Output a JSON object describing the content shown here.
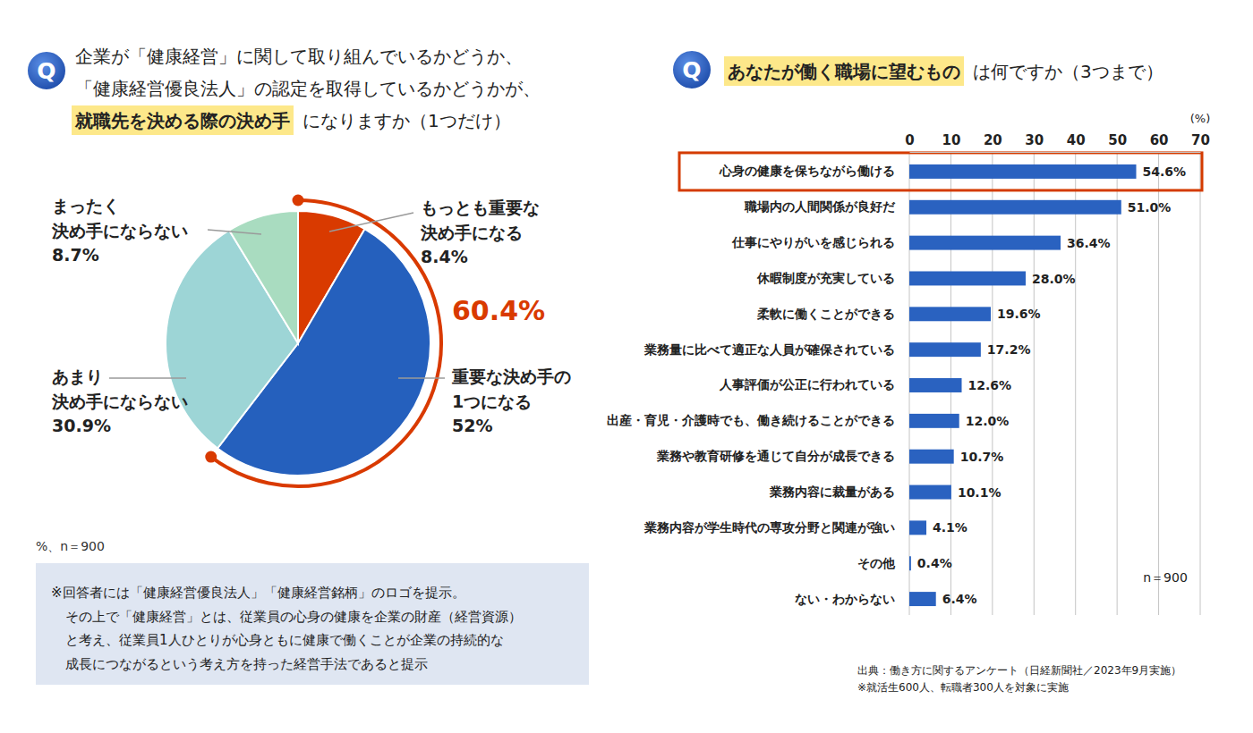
{
  "chart_data": [
    {
      "type": "pie",
      "title_icon": "Q",
      "title": [
        "企業が「健康経営」に関して取り組んでいるかどうか、",
        "「健康経営優良法人」の認定を取得しているかどうかが、",
        "就職先を決める際の決め手",
        "になりますか（1つだけ）"
      ],
      "categories": [
        "もっとも重要な\n決め手になる",
        "重要な決め手の\n1つになる",
        "あまり\n決め手にならない",
        "まったく\n決め手にならない"
      ],
      "values": [
        8.4,
        52,
        30.9,
        8.7
      ],
      "value_labels": [
        "8.4%",
        "52%",
        "30.9%",
        "8.7%"
      ],
      "colors": [
        "#d93a00",
        "#2560bd",
        "#9dd5d6",
        "#a9dcc0"
      ],
      "data_labels": true,
      "annotations": [
        {
          "text": "60.4%",
          "value": 60.4
        }
      ],
      "note": "%、n＝900",
      "footnote": [
        "※回答者には「健康経営優良法人」「健康経営銘柄」のロゴを提示。",
        "その上で「健康経営」とは、従業員の心身の健康を企業の財産（経営資源）",
        "と考え、従業員1人ひとりが心身ともに健康で働くことが企業の持続的な",
        "成長につながるという考え方を持った経営手法であると提示"
      ]
    },
    {
      "type": "bar",
      "orientation": "horizontal",
      "title_icon": "Q",
      "title": [
        "あなたが働く職場に望むもの",
        "は何ですか（3つまで）"
      ],
      "x_label": "(%)",
      "categories": [
        "心身の健康を保ちながら働ける",
        "職場内の人間関係が良好だ",
        "仕事にやりがいを感じられる",
        "休暇制度が充実している",
        "柔軟に働くことができる",
        "業務量に比べて適正な人員が確保されている",
        "人事評価が公正に行われている",
        "出産・育児・介護時でも、働き続けることができる",
        "業務や教育研修を通じて自分が成長できる",
        "業務内容に裁量がある",
        "業務内容が学生時代の専攻分野と関連が強い",
        "その他",
        "ない・わからない"
      ],
      "values": [
        54.6,
        51.0,
        36.4,
        28.0,
        19.6,
        17.2,
        12.6,
        12.0,
        10.7,
        10.1,
        4.1,
        0.4,
        6.4
      ],
      "value_labels": [
        "54.6%",
        "51.0%",
        "36.4%",
        "28.0%",
        "19.6%",
        "17.2%",
        "12.6%",
        "12.0%",
        "10.7%",
        "10.1%",
        "4.1%",
        "0.4%",
        "6.4%"
      ],
      "color": "#2a62c0",
      "xlim": [
        0,
        70
      ],
      "xticks": [
        0,
        10,
        20,
        30,
        40,
        50,
        60,
        70
      ],
      "grid": true,
      "data_labels": true,
      "annotations": [
        {
          "text": "n＝900"
        }
      ],
      "source": [
        "出典：働き方に関するアンケート（日経新聞社／2023年9月実施）",
        "※就活生600人、転職者300人を対象に実施"
      ]
    }
  ]
}
